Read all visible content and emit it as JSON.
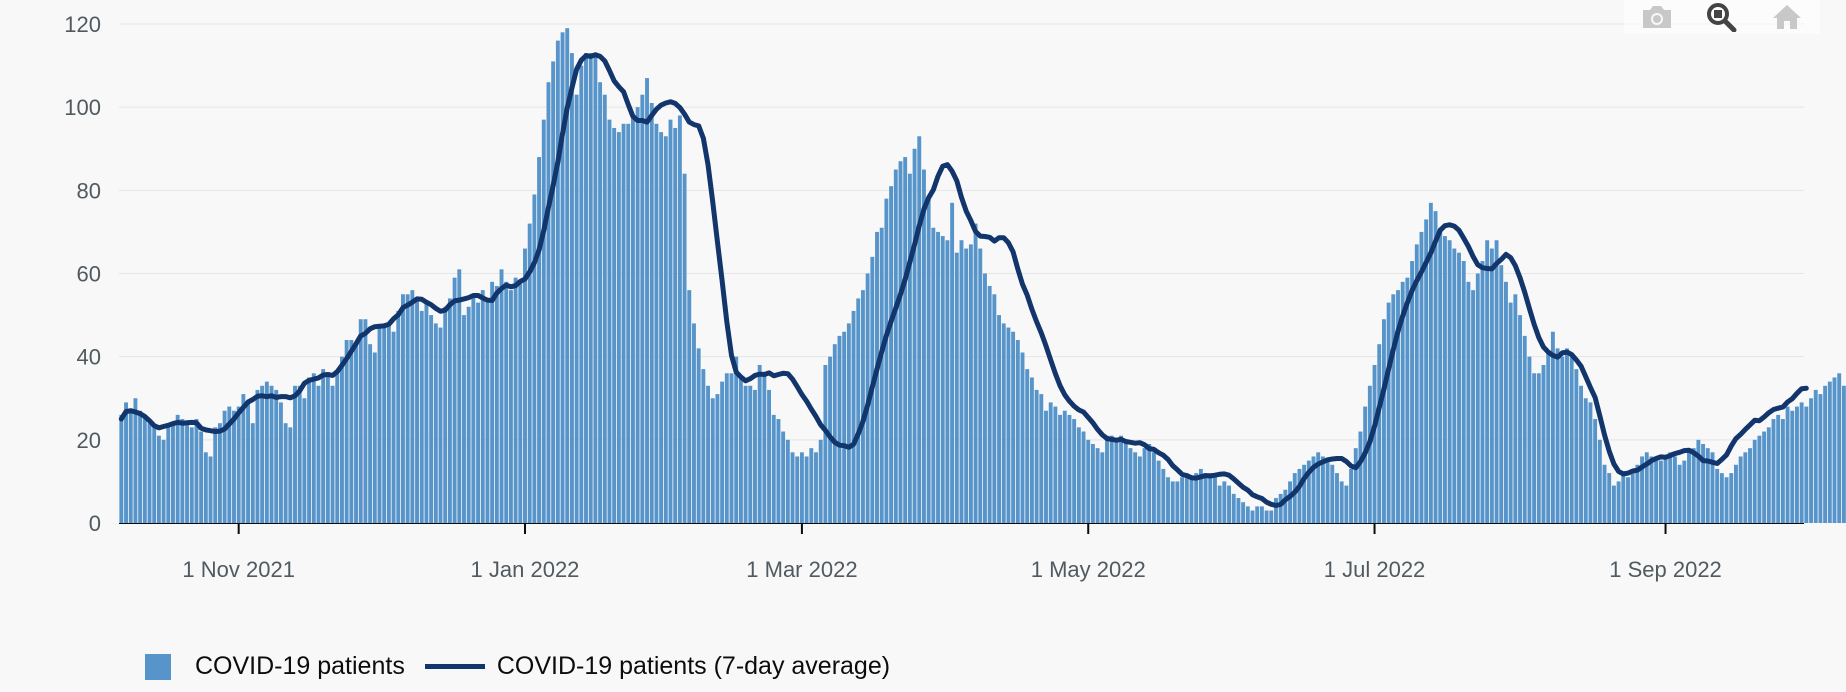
{
  "toolbar": {
    "icons": [
      "camera-icon",
      "zoom-icon",
      "home-icon"
    ],
    "labels": [
      "Download plot as a png",
      "Zoom",
      "Reset axes"
    ]
  },
  "colors": {
    "bar": "#5694ca",
    "line": "#12356b",
    "grid": "#e5e5e5",
    "axis": "#0b0c0c",
    "background": "#f8f8f8"
  },
  "chart_data": {
    "type": "bar",
    "title": "",
    "xlabel": "",
    "ylabel": "",
    "x_start": "2021-10-07",
    "x_end": "2022-09-30",
    "ylim": [
      0,
      120
    ],
    "y_ticks": [
      0,
      20,
      40,
      60,
      80,
      100,
      120
    ],
    "x_ticks": [
      {
        "date": "2021-11-01",
        "label": "1 Nov 2021"
      },
      {
        "date": "2022-01-01",
        "label": "1 Jan 2022"
      },
      {
        "date": "2022-03-01",
        "label": "1 Mar 2022"
      },
      {
        "date": "2022-05-01",
        "label": "1 May 2022"
      },
      {
        "date": "2022-07-01",
        "label": "1 Jul 2022"
      },
      {
        "date": "2022-09-01",
        "label": "1 Sep 2022"
      }
    ],
    "grid": true,
    "legend_position": "bottom-left",
    "series": [
      {
        "name": "COVID-19 patients",
        "kind": "bar",
        "values": [
          26,
          29,
          27,
          30,
          27,
          26,
          24,
          23,
          21,
          20,
          23,
          24,
          26,
          25,
          24,
          23,
          25,
          22,
          17,
          16,
          23,
          24,
          27,
          28,
          27,
          28,
          31,
          29,
          24,
          32,
          33,
          34,
          33,
          32,
          29,
          24,
          23,
          33,
          33,
          30,
          35,
          36,
          33,
          37,
          36,
          33,
          36,
          40,
          44,
          44,
          43,
          49,
          49,
          43,
          41,
          47,
          48,
          48,
          46,
          51,
          55,
          55,
          56,
          54,
          51,
          53,
          50,
          48,
          47,
          52,
          54,
          59,
          61,
          50,
          52,
          55,
          53,
          56,
          54,
          58,
          57,
          61,
          58,
          56,
          59,
          58,
          66,
          72,
          79,
          88,
          97,
          106,
          111,
          116,
          118,
          119,
          113,
          103,
          110,
          113,
          113,
          112,
          106,
          103,
          97,
          95,
          94,
          96,
          96,
          98,
          100,
          103,
          107,
          101,
          96,
          94,
          93,
          97,
          95,
          98,
          84,
          56,
          48,
          42,
          37,
          33,
          30,
          31,
          34,
          36,
          36,
          40,
          35,
          33,
          33,
          32,
          38,
          36,
          32,
          26,
          25,
          22,
          20,
          17,
          16,
          17,
          16,
          18,
          17,
          20,
          38,
          40,
          43,
          45,
          46,
          48,
          51,
          54,
          56,
          60,
          64,
          70,
          71,
          78,
          81,
          85,
          87,
          88,
          84,
          90,
          93,
          85,
          78,
          71,
          70,
          69,
          68,
          77,
          65,
          68,
          66,
          67,
          72,
          66,
          60,
          57,
          55,
          50,
          48,
          47,
          46,
          44,
          41,
          37,
          35,
          32,
          31,
          27,
          29,
          28,
          26,
          27,
          26,
          25,
          23,
          22,
          20,
          19,
          18,
          17,
          21,
          21,
          20,
          21,
          20,
          18,
          17,
          16,
          18,
          19,
          17,
          15,
          13,
          11,
          10,
          10,
          11,
          12,
          11,
          12,
          13,
          12,
          12,
          11,
          9,
          10,
          9,
          7,
          6,
          5,
          4,
          3,
          4,
          4,
          3,
          3,
          6,
          7,
          8,
          10,
          12,
          13,
          14,
          15,
          16,
          17,
          16,
          15,
          14,
          12,
          10,
          9,
          13,
          18,
          22,
          28,
          33,
          38,
          43,
          49,
          53,
          55,
          56,
          58,
          59,
          63,
          67,
          70,
          73,
          77,
          75,
          71,
          69,
          68,
          66,
          65,
          63,
          58,
          56,
          60,
          63,
          68,
          66,
          68,
          62,
          58,
          53,
          55,
          50,
          45,
          40,
          36,
          36,
          38,
          41,
          46,
          42,
          40,
          42,
          40,
          37,
          33,
          30,
          29,
          25,
          20,
          14,
          12,
          9,
          10,
          12,
          11,
          12,
          14,
          16,
          17,
          16,
          15,
          15,
          16,
          17,
          16,
          14,
          15,
          17,
          18,
          20,
          19,
          18,
          17,
          13,
          12,
          11,
          12,
          14,
          16,
          17,
          18,
          20,
          21,
          22,
          23,
          25,
          26,
          25,
          28,
          27,
          28,
          29,
          28,
          30,
          32,
          31,
          33,
          34,
          35,
          36,
          33
        ]
      },
      {
        "name": "COVID-19 patients (7-day average)",
        "kind": "line",
        "values": [
          25,
          26.8,
          27,
          26.7,
          26.3,
          25.6,
          24.6,
          23.4,
          22.9,
          23.2,
          23.5,
          23.9,
          24.2,
          24,
          24.1,
          24.2,
          24.1,
          22.8,
          22.4,
          22.2,
          22,
          22.1,
          22.6,
          23.8,
          25,
          26.5,
          27.8,
          29.1,
          29.7,
          30.5,
          30.6,
          30.4,
          30.6,
          30.2,
          30.4,
          30.4,
          30.1,
          30.6,
          31.8,
          33.6,
          34.3,
          34.6,
          34.9,
          35.6,
          35.7,
          35.5,
          36.4,
          37.9,
          39.5,
          41.3,
          43.1,
          45,
          45.6,
          46.7,
          47.2,
          47.3,
          47.4,
          47.8,
          49.1,
          50.1,
          51.8,
          52.4,
          53.1,
          53.9,
          53.8,
          53.1,
          52.5,
          51.6,
          50.9,
          51.2,
          52.5,
          53.4,
          53.6,
          53.9,
          54.2,
          54.7,
          54.7,
          54.1,
          53.6,
          53.5,
          55.3,
          56.4,
          57.2,
          56.8,
          57.1,
          58.1,
          58.7,
          60.4,
          62.6,
          65.7,
          70.4,
          75.9,
          81.2,
          86.9,
          93.6,
          99.8,
          104.6,
          109.1,
          111.3,
          112.4,
          112.2,
          112.6,
          112.2,
          111.1,
          108.8,
          106.3,
          104.9,
          103.7,
          100.6,
          97.8,
          96.8,
          96.8,
          96.4,
          98,
          99.5,
          100.5,
          101,
          101.3,
          100.9,
          99.9,
          98.3,
          96.4,
          95.8,
          95.5,
          92.5,
          86.2,
          77.3,
          67.7,
          58.3,
          48.4,
          40.3,
          36.3,
          35.1,
          34.2,
          34.7,
          35.5,
          35.8,
          35.7,
          36.1,
          35.4,
          35.7,
          36,
          35.9,
          34.6,
          32.8,
          30.9,
          29.3,
          27.4,
          25.6,
          23.6,
          22.3,
          20.7,
          19.4,
          18.7,
          18.6,
          18.2,
          18.9,
          21.4,
          24.4,
          28.3,
          32.7,
          37,
          41.2,
          45.1,
          48.5,
          51.7,
          55,
          58.6,
          62.8,
          67,
          71.5,
          75.5,
          78.2,
          80.1,
          83.4,
          85.8,
          86.2,
          84.6,
          82.3,
          78.3,
          75,
          72.7,
          70.1,
          69,
          68.9,
          68.7,
          67.8,
          68.6,
          68.6,
          67.4,
          65.2,
          61.1,
          57.4,
          54.8,
          51.4,
          48.4,
          45.7,
          42.6,
          39.2,
          35.9,
          33,
          30.8,
          29.3,
          28.1,
          27.2,
          26.7,
          25.4,
          24.1,
          22.5,
          21.2,
          20.3,
          20.1,
          19.9,
          20.1,
          19.6,
          19.4,
          19.2,
          19.3,
          18.8,
          17.9,
          17.7,
          16.9,
          16.3,
          15.3,
          13.8,
          12.8,
          11.7,
          11.4,
          10.9,
          10.8,
          11.1,
          11.4,
          11.3,
          11.5,
          11.7,
          11.8,
          11.5,
          10.6,
          9.6,
          8.6,
          7.9,
          6.8,
          6.3,
          5.9,
          5,
          4.5,
          4.2,
          4.5,
          5.6,
          6.4,
          7.4,
          8.8,
          10.7,
          12.2,
          13.4,
          14.2,
          14.7,
          15.2,
          15.4,
          15.5,
          15.5,
          14.8,
          13.7,
          13.3,
          14.8,
          16.8,
          19.5,
          23.2,
          27.7,
          32.2,
          37,
          41.7,
          46.1,
          49.8,
          53,
          55.9,
          58.3,
          60.4,
          62.7,
          65,
          67.8,
          70.4,
          71.5,
          71.7,
          71.4,
          70.4,
          68.5,
          66.5,
          64.1,
          62.1,
          61.4,
          61.2,
          61.1,
          62.4,
          63.4,
          64.6,
          63.8,
          61.9,
          59,
          55.5,
          51.6,
          47.8,
          44.6,
          42.3,
          41.1,
          40.3,
          39.9,
          40.9,
          41.1,
          40.5,
          39.2,
          37.7,
          35.2,
          32.6,
          30.2,
          25.8,
          21.2,
          17.3,
          14.2,
          12.4,
          11.8,
          12,
          12.5,
          12.7,
          13.5,
          14.2,
          15,
          15.5,
          15.9,
          15.8,
          16.2,
          16.7,
          17,
          17.4,
          17.5,
          16.9,
          16.1,
          15,
          14.9,
          14.6,
          14.3,
          15.3,
          16.4,
          18.5,
          20.3,
          21.3,
          22.5,
          23.6,
          24.7,
          24.6,
          25.5,
          26.5,
          27.3,
          27.6,
          27.9,
          29.1,
          29.9,
          31.2,
          32.3,
          32.4
        ]
      }
    ]
  },
  "legend": {
    "items": [
      {
        "label": "COVID-19 patients"
      },
      {
        "label": "COVID-19 patients (7-day average)"
      }
    ]
  }
}
